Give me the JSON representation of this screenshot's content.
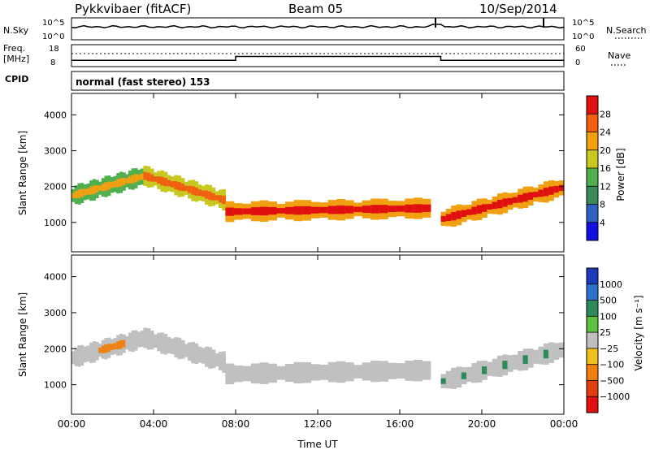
{
  "header": {
    "station": "Pykkvibaer (fitACF)",
    "beam": "Beam 05",
    "date": "10/Sep/2014"
  },
  "top_panels": {
    "nsky_label": "N.Sky",
    "nsky_ticks": [
      "10^5",
      "10^0"
    ],
    "nsearch_label": "N.Search",
    "nsearch_ticks": [
      "10^5",
      "10^0"
    ],
    "freq_label": "Freq.",
    "freq_unit": "[MHz]",
    "freq_ticks": [
      "18",
      "8"
    ],
    "nave_label": "Nave",
    "nave_ticks": [
      "60",
      "0"
    ],
    "cpid_label": "CPID",
    "cpid_text": "normal (fast stereo) 153",
    "freq_steps": [
      {
        "t0": 0.0,
        "t1": 8.0,
        "freq_mhz": 10.0
      },
      {
        "t0": 8.0,
        "t1": 18.0,
        "freq_mhz": 12.5
      },
      {
        "t0": 18.0,
        "t1": 24.0,
        "freq_mhz": 10.0
      }
    ]
  },
  "chart_data": [
    {
      "type": "heatmap",
      "name": "power",
      "ylabel": "Slant Range [km]",
      "ylim": [
        180,
        4600
      ],
      "yticks": [
        "1000",
        "2000",
        "3000",
        "4000"
      ],
      "ytick_values": [
        1000,
        2000,
        3000,
        4000
      ],
      "xlim": [
        0,
        24
      ],
      "colorbar_label": "Power [dB]",
      "colorbar_ticks": [
        "4",
        "8",
        "12",
        "16",
        "20",
        "24",
        "28"
      ],
      "colorbar_colors": [
        "#1010e0",
        "#3060c0",
        "#3a8a5a",
        "#50b050",
        "#c8c820",
        "#f0a010",
        "#f06010",
        "#e01010"
      ],
      "echo_bands": [
        {
          "t0": 0.0,
          "t1": 3.5,
          "r_start": 1750,
          "r_end": 2300,
          "power_db": 14
        },
        {
          "t0": 3.5,
          "t1": 7.5,
          "r_start": 2300,
          "r_end": 1600,
          "power_db": 18
        },
        {
          "t0": 7.5,
          "t1": 17.5,
          "r_start": 1300,
          "r_end": 1400,
          "power_db": 24
        },
        {
          "t0": 18.0,
          "t1": 24.0,
          "r_start": 1100,
          "r_end": 2000,
          "power_db": 22
        }
      ]
    },
    {
      "type": "heatmap",
      "name": "velocity",
      "ylabel": "Slant Range [km]",
      "ylim": [
        180,
        4600
      ],
      "yticks": [
        "1000",
        "2000",
        "3000",
        "4000"
      ],
      "ytick_values": [
        1000,
        2000,
        3000,
        4000
      ],
      "xlim": [
        0,
        24
      ],
      "xlabel": "Time UT",
      "xticks": [
        "00:00",
        "04:00",
        "08:00",
        "12:00",
        "16:00",
        "20:00",
        "00:00"
      ],
      "xtick_values": [
        0,
        4,
        8,
        12,
        16,
        20,
        24
      ],
      "colorbar_label": "Velocity [m s⁻¹]",
      "colorbar_ticks": [
        "1000",
        "500",
        "100",
        "25",
        "−25",
        "−100",
        "−500",
        "−1000"
      ],
      "colorbar_colors": [
        "#1a3ab8",
        "#2c72c8",
        "#2e8a5a",
        "#60c040",
        "#c0c0c0",
        "#f0c020",
        "#f08010",
        "#e04010",
        "#e01010"
      ],
      "ground_scatter_color": "#c0c0c0"
    }
  ]
}
